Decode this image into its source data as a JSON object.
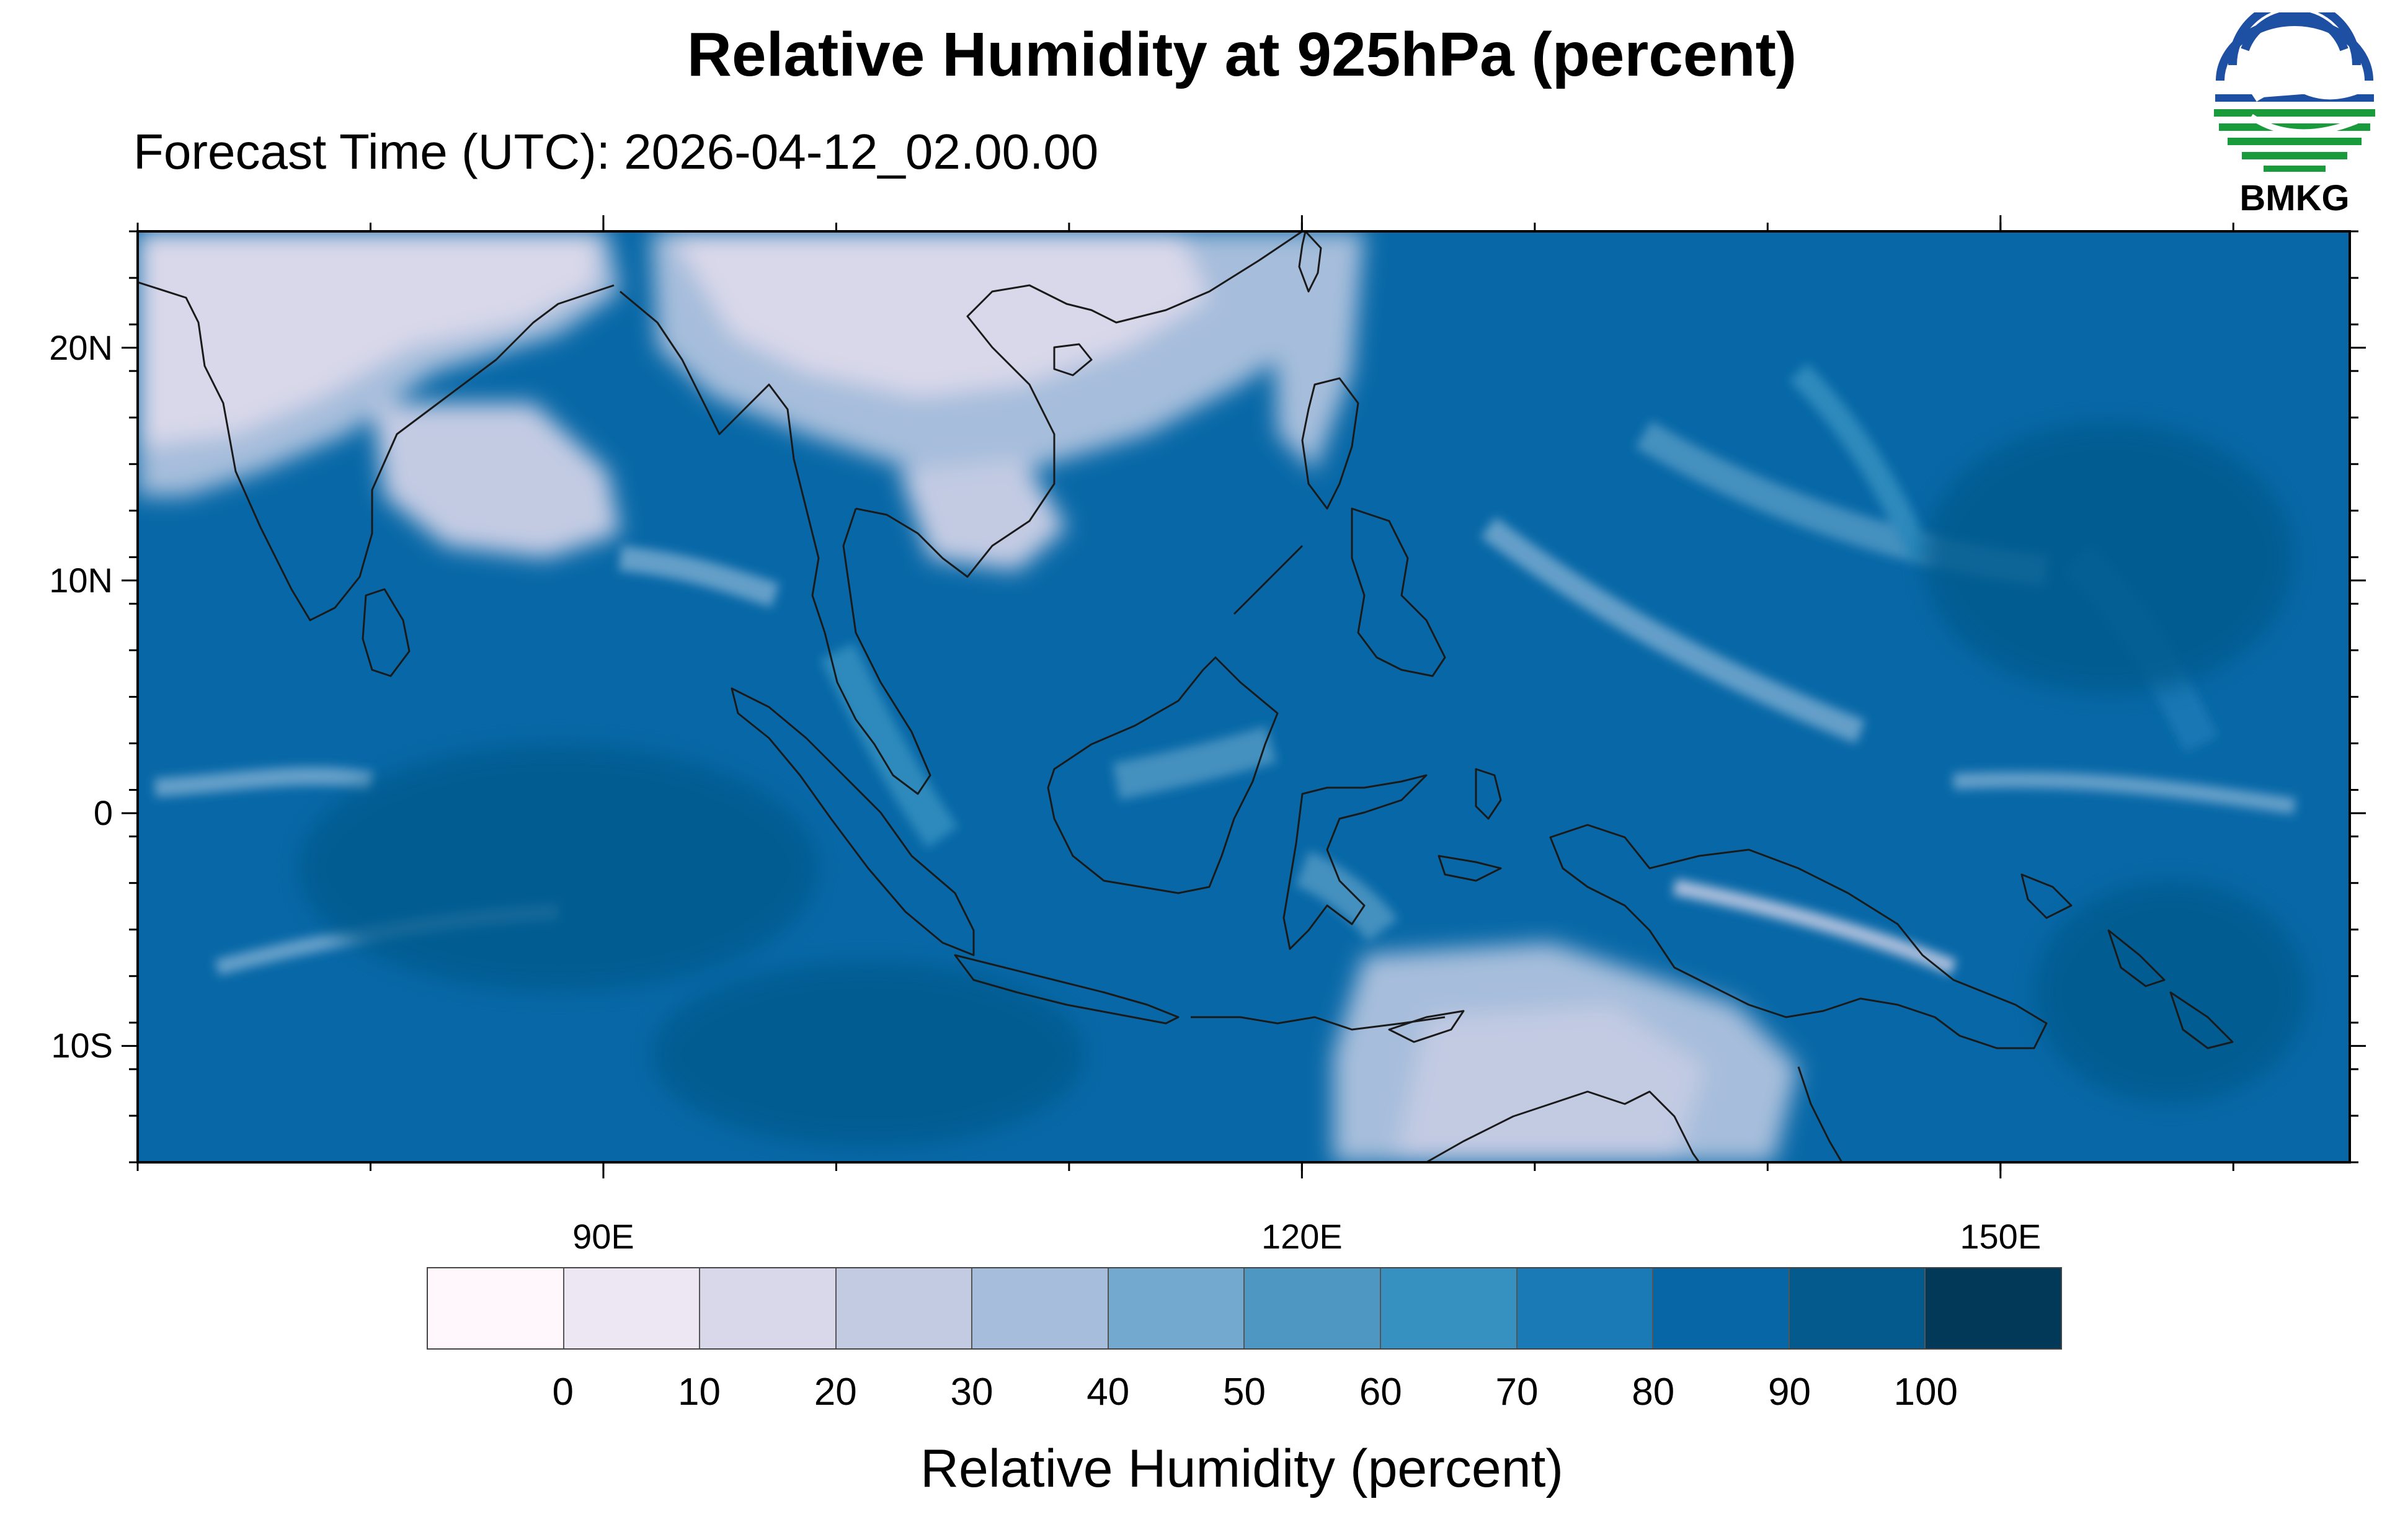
{
  "title": "Relative Humidity at 925hPa (percent)",
  "subtitle": "Forecast Time (UTC): 2026-04-12_02.00.00",
  "logo": {
    "text": "BMKG",
    "icon": "bmkg-logo-icon",
    "colors": {
      "blue": "#1d4fa3",
      "green": "#199b3c"
    }
  },
  "map": {
    "lon_range": [
      70,
      165
    ],
    "lat_range": [
      -15,
      25
    ],
    "lat_ticks": [
      {
        "value": 20,
        "label": "20N"
      },
      {
        "value": 10,
        "label": "10N"
      },
      {
        "value": 0,
        "label": "0"
      },
      {
        "value": -10,
        "label": "10S"
      }
    ],
    "lon_ticks": [
      {
        "value": 90,
        "label": "90E"
      },
      {
        "value": 120,
        "label": "120E"
      },
      {
        "value": 150,
        "label": "150E"
      }
    ],
    "coastline_color": "#1a1a1a"
  },
  "colorbar": {
    "title": "Relative Humidity (percent)",
    "labels": [
      "0",
      "10",
      "20",
      "30",
      "40",
      "50",
      "60",
      "70",
      "80",
      "90",
      "100"
    ],
    "colors": [
      "#fff7fb",
      "#ece7f2",
      "#d9d8ea",
      "#c3cbe3",
      "#a6bddb",
      "#74a9cf",
      "#4f97c3",
      "#3690c0",
      "#1a7ab6",
      "#0767a6",
      "#045a8d",
      "#023858"
    ]
  }
}
